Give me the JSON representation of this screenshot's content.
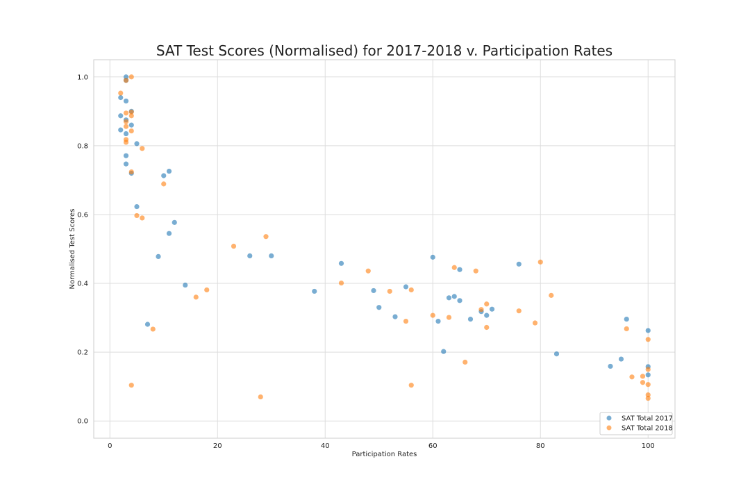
{
  "chart_data": {
    "type": "scatter",
    "title": "SAT Test Scores (Normalised) for 2017-2018 v. Participation Rates",
    "xlabel": "Participation Rates",
    "ylabel": "Normalised Test Scores",
    "xlim": [
      -3,
      105
    ],
    "ylim": [
      -0.05,
      1.05
    ],
    "xticks": [
      "0",
      "20",
      "40",
      "60",
      "80",
      "100"
    ],
    "yticks": [
      "0.0",
      "0.2",
      "0.4",
      "0.6",
      "0.8",
      "1.0"
    ],
    "grid": true,
    "legend_position": "lower-right",
    "series": [
      {
        "name": "SAT Total 2017",
        "color": "#1f77b4",
        "points": [
          [
            3,
            1.0
          ],
          [
            3,
            0.99
          ],
          [
            2,
            0.94
          ],
          [
            3,
            0.93
          ],
          [
            4,
            0.9
          ],
          [
            2,
            0.887
          ],
          [
            3,
            0.875
          ],
          [
            4,
            0.86
          ],
          [
            2,
            0.846
          ],
          [
            3,
            0.835
          ],
          [
            5,
            0.806
          ],
          [
            3,
            0.771
          ],
          [
            3,
            0.747
          ],
          [
            4,
            0.72
          ],
          [
            10,
            0.713
          ],
          [
            11,
            0.726
          ],
          [
            5,
            0.623
          ],
          [
            12,
            0.577
          ],
          [
            11,
            0.545
          ],
          [
            9,
            0.478
          ],
          [
            26,
            0.48
          ],
          [
            30,
            0.48
          ],
          [
            14,
            0.395
          ],
          [
            7,
            0.281
          ],
          [
            38,
            0.377
          ],
          [
            43,
            0.458
          ],
          [
            49,
            0.379
          ],
          [
            50,
            0.33
          ],
          [
            53,
            0.303
          ],
          [
            55,
            0.39
          ],
          [
            60,
            0.476
          ],
          [
            61,
            0.29
          ],
          [
            62,
            0.202
          ],
          [
            63,
            0.358
          ],
          [
            64,
            0.362
          ],
          [
            65,
            0.35
          ],
          [
            65,
            0.44
          ],
          [
            67,
            0.296
          ],
          [
            69,
            0.318
          ],
          [
            70,
            0.307
          ],
          [
            71,
            0.325
          ],
          [
            76,
            0.456
          ],
          [
            83,
            0.195
          ],
          [
            93,
            0.159
          ],
          [
            95,
            0.18
          ],
          [
            96,
            0.296
          ],
          [
            100,
            0.263
          ],
          [
            100,
            0.158
          ],
          [
            100,
            0.134
          ]
        ]
      },
      {
        "name": "SAT Total 2018",
        "color": "#ff7f0e",
        "points": [
          [
            4,
            1.0
          ],
          [
            3,
            0.99
          ],
          [
            2,
            0.953
          ],
          [
            4,
            0.898
          ],
          [
            3,
            0.895
          ],
          [
            4,
            0.887
          ],
          [
            3,
            0.87
          ],
          [
            3,
            0.856
          ],
          [
            4,
            0.843
          ],
          [
            3,
            0.818
          ],
          [
            3,
            0.81
          ],
          [
            6,
            0.792
          ],
          [
            4,
            0.724
          ],
          [
            10,
            0.689
          ],
          [
            5,
            0.597
          ],
          [
            6,
            0.59
          ],
          [
            23,
            0.508
          ],
          [
            29,
            0.536
          ],
          [
            16,
            0.36
          ],
          [
            18,
            0.381
          ],
          [
            8,
            0.267
          ],
          [
            4,
            0.104
          ],
          [
            28,
            0.07
          ],
          [
            43,
            0.401
          ],
          [
            48,
            0.436
          ],
          [
            52,
            0.377
          ],
          [
            56,
            0.381
          ],
          [
            55,
            0.29
          ],
          [
            56,
            0.104
          ],
          [
            60,
            0.307
          ],
          [
            63,
            0.301
          ],
          [
            64,
            0.446
          ],
          [
            66,
            0.171
          ],
          [
            68,
            0.436
          ],
          [
            69,
            0.324
          ],
          [
            70,
            0.34
          ],
          [
            70,
            0.272
          ],
          [
            76,
            0.32
          ],
          [
            79,
            0.285
          ],
          [
            80,
            0.462
          ],
          [
            82,
            0.365
          ],
          [
            96,
            0.268
          ],
          [
            97,
            0.128
          ],
          [
            99,
            0.13
          ],
          [
            99,
            0.112
          ],
          [
            100,
            0.237
          ],
          [
            100,
            0.15
          ],
          [
            100,
            0.106
          ],
          [
            100,
            0.076
          ],
          [
            100,
            0.066
          ]
        ]
      }
    ]
  }
}
